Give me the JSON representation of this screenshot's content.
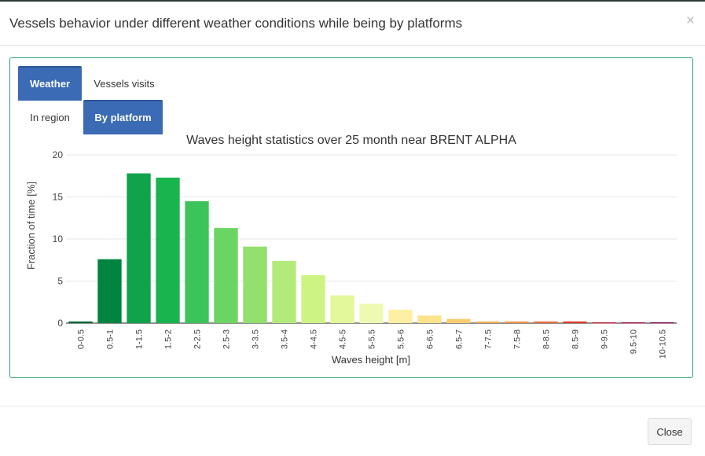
{
  "modal": {
    "title": "Vessels behavior under different weather conditions while being by platforms",
    "close_symbol": "×",
    "close_button_label": "Close"
  },
  "tabs_row1": [
    {
      "label": "Weather",
      "active": true
    },
    {
      "label": "Vessels visits",
      "active": false
    }
  ],
  "tabs_row2": [
    {
      "label": "In region",
      "active": false
    },
    {
      "label": "By platform",
      "active": true
    }
  ],
  "colors": {
    "accent": "#3a6bb4",
    "panel_border": "#2e9e6e"
  },
  "chart_data": {
    "type": "bar",
    "title": "Waves height statistics over 25 month near BRENT ALPHA",
    "xlabel": "Waves height [m]",
    "ylabel": "Fraction of time [%]",
    "ylim": [
      0,
      20
    ],
    "yticks": [
      0,
      5,
      10,
      15,
      20
    ],
    "grid": true,
    "categories": [
      "0-0.5",
      "0.5-1",
      "1-1.5",
      "1.5-2",
      "2-2.5",
      "2.5-3",
      "3-3.5",
      "3.5-4",
      "4-4.5",
      "4.5-5",
      "5-5.5",
      "5.5-6",
      "6-6.5",
      "6.5-7",
      "7-7.5",
      "7.5-8",
      "8-8.5",
      "8.5-9",
      "9-9.5",
      "9.5-10",
      "10-10.5"
    ],
    "values": [
      0.2,
      7.6,
      17.8,
      17.3,
      14.5,
      11.3,
      9.1,
      7.4,
      5.7,
      3.3,
      2.3,
      1.6,
      0.9,
      0.5,
      0.2,
      0.2,
      0.2,
      0.2,
      0.1,
      0.1,
      0.1
    ],
    "colors": [
      "#006837",
      "#00843f",
      "#11a24c",
      "#1ab44f",
      "#3cc45a",
      "#6bd563",
      "#92e06e",
      "#b3eb7a",
      "#cdf483",
      "#e3f89a",
      "#eefab2",
      "#fdf0a5",
      "#fce38c",
      "#fbcd6e",
      "#f7ae55",
      "#f3954a",
      "#ea6e3b",
      "#db3b2d",
      "#b41f38",
      "#8e1242",
      "#6b0c49"
    ]
  }
}
